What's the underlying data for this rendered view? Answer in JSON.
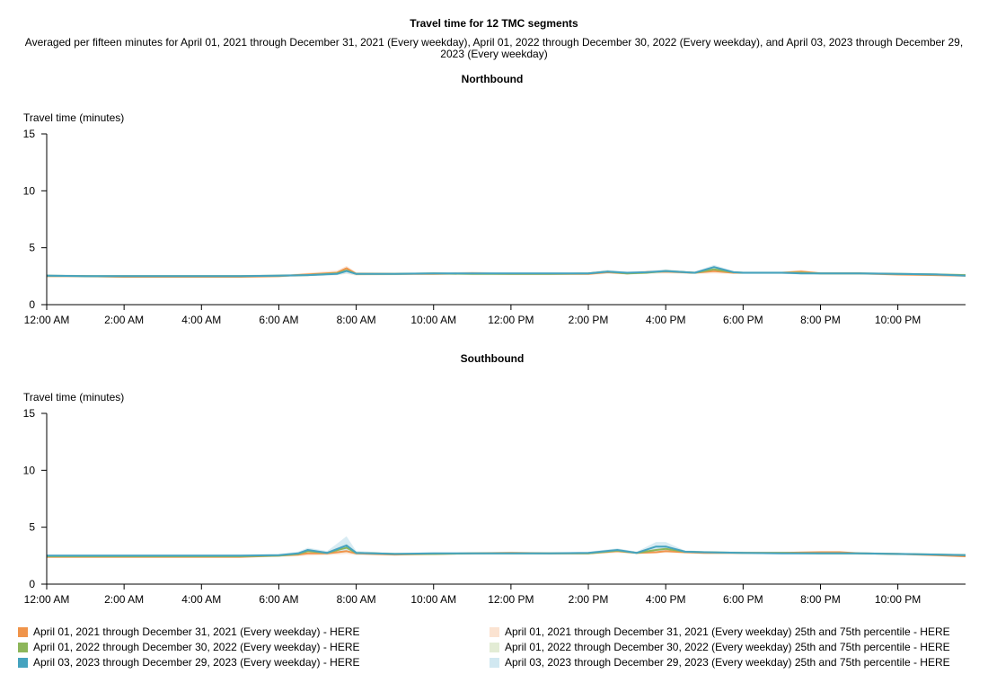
{
  "chart_data": {
    "type": "line",
    "title": "Travel time for 12 TMC segments",
    "subtitle": "Averaged per fifteen minutes for April 01, 2021 through December 31, 2021 (Every weekday), April 01, 2022 through December 30, 2022 (Every weekday), and April 03, 2023 through December 29, 2023 (Every weekday)",
    "ylabel": "Travel time (minutes)",
    "ylim": [
      0,
      15
    ],
    "yticks": [
      0,
      5,
      10,
      15
    ],
    "xlim_hours": [
      0,
      23.75
    ],
    "xticks": [
      {
        "hour": 0,
        "label": "12:00 AM"
      },
      {
        "hour": 2,
        "label": "2:00 AM"
      },
      {
        "hour": 4,
        "label": "4:00 AM"
      },
      {
        "hour": 6,
        "label": "6:00 AM"
      },
      {
        "hour": 8,
        "label": "8:00 AM"
      },
      {
        "hour": 10,
        "label": "10:00 AM"
      },
      {
        "hour": 12,
        "label": "12:00 PM"
      },
      {
        "hour": 14,
        "label": "2:00 PM"
      },
      {
        "hour": 16,
        "label": "4:00 PM"
      },
      {
        "hour": 18,
        "label": "6:00 PM"
      },
      {
        "hour": 20,
        "label": "8:00 PM"
      },
      {
        "hour": 22,
        "label": "10:00 PM"
      }
    ],
    "legend": [
      {
        "label": "April 01, 2021 through December 31, 2021 (Every weekday) - HERE",
        "color": "#f0944a"
      },
      {
        "label": "April 01, 2022 through December 30, 2022 (Every weekday) - HERE",
        "color": "#8db65a"
      },
      {
        "label": "April 03, 2023 through December 29, 2023 (Every weekday) - HERE",
        "color": "#45a3bf"
      },
      {
        "label": "April 01, 2021 through December 31, 2021 (Every weekday) 25th and 75th percentile - HERE",
        "color": "#fbe3d1"
      },
      {
        "label": "April 01, 2022 through December 30, 2022 (Every weekday) 25th and 75th percentile - HERE",
        "color": "#e3ecd5"
      },
      {
        "label": "April 03, 2023 through December 29, 2023 (Every weekday) 25th and 75th percentile - HERE",
        "color": "#d1e8f1"
      }
    ],
    "panels": [
      {
        "title": "Northbound",
        "series": [
          {
            "name": "April 01, 2021 through December 31, 2021 (Every weekday) - HERE",
            "color": "#f0944a",
            "band_color": "#fbe3d1",
            "x": [
              0,
              1,
              2,
              3,
              4,
              5,
              6,
              6.75,
              7.5,
              7.75,
              8,
              9,
              10,
              11,
              12,
              13,
              14,
              14.5,
              15,
              15.5,
              16,
              16.75,
              17.25,
              17.75,
              18,
              19,
              19.5,
              20,
              21,
              22,
              23,
              23.75
            ],
            "y": [
              2.5,
              2.5,
              2.45,
              2.45,
              2.45,
              2.45,
              2.5,
              2.65,
              2.8,
              3.2,
              2.7,
              2.7,
              2.7,
              2.75,
              2.7,
              2.7,
              2.7,
              2.85,
              2.75,
              2.85,
              2.9,
              2.8,
              2.95,
              2.8,
              2.8,
              2.8,
              2.9,
              2.75,
              2.75,
              2.65,
              2.6,
              2.55
            ],
            "low": [
              2.4,
              2.4,
              2.35,
              2.35,
              2.35,
              2.35,
              2.4,
              2.5,
              2.6,
              2.7,
              2.55,
              2.6,
              2.6,
              2.6,
              2.6,
              2.6,
              2.6,
              2.7,
              2.65,
              2.7,
              2.75,
              2.7,
              2.75,
              2.7,
              2.7,
              2.7,
              2.75,
              2.65,
              2.65,
              2.55,
              2.5,
              2.45
            ],
            "high": [
              2.6,
              2.6,
              2.55,
              2.55,
              2.55,
              2.55,
              2.6,
              2.8,
              3.0,
              3.4,
              2.85,
              2.8,
              2.8,
              2.9,
              2.8,
              2.8,
              2.8,
              3.0,
              2.85,
              3.0,
              3.05,
              2.9,
              3.15,
              2.9,
              2.9,
              2.9,
              3.05,
              2.85,
              2.85,
              2.75,
              2.7,
              2.65
            ]
          },
          {
            "name": "April 01, 2022 through December 30, 2022 (Every weekday) - HERE",
            "color": "#8db65a",
            "band_color": "#e3ecd5",
            "x": [
              0,
              1,
              2,
              3,
              4,
              5,
              6,
              6.75,
              7.5,
              7.75,
              8,
              9,
              10,
              11,
              12,
              13,
              14,
              14.5,
              15,
              15.5,
              16,
              16.75,
              17.25,
              17.75,
              18,
              19,
              19.5,
              20,
              21,
              22,
              23,
              23.75
            ],
            "y": [
              2.55,
              2.5,
              2.5,
              2.5,
              2.5,
              2.5,
              2.55,
              2.6,
              2.75,
              3.0,
              2.7,
              2.7,
              2.75,
              2.7,
              2.7,
              2.7,
              2.75,
              2.9,
              2.75,
              2.8,
              2.95,
              2.8,
              3.1,
              2.85,
              2.8,
              2.8,
              2.8,
              2.75,
              2.75,
              2.7,
              2.65,
              2.6
            ],
            "low": [
              2.45,
              2.4,
              2.4,
              2.4,
              2.4,
              2.4,
              2.45,
              2.5,
              2.6,
              2.75,
              2.6,
              2.6,
              2.65,
              2.6,
              2.6,
              2.6,
              2.65,
              2.75,
              2.65,
              2.7,
              2.8,
              2.7,
              2.9,
              2.75,
              2.7,
              2.7,
              2.7,
              2.65,
              2.65,
              2.6,
              2.55,
              2.5
            ],
            "high": [
              2.65,
              2.6,
              2.6,
              2.6,
              2.6,
              2.6,
              2.65,
              2.7,
              2.9,
              3.2,
              2.8,
              2.8,
              2.85,
              2.8,
              2.8,
              2.8,
              2.85,
              3.05,
              2.85,
              2.9,
              3.1,
              2.9,
              3.3,
              2.95,
              2.9,
              2.9,
              2.9,
              2.85,
              2.85,
              2.8,
              2.75,
              2.7
            ]
          },
          {
            "name": "April 03, 2023 through December 29, 2023 (Every weekday) - HERE",
            "color": "#45a3bf",
            "band_color": "#d1e8f1",
            "x": [
              0,
              1,
              2,
              3,
              4,
              5,
              6,
              6.75,
              7.5,
              7.75,
              8,
              9,
              10,
              11,
              12,
              13,
              14,
              14.5,
              15,
              15.5,
              16,
              16.75,
              17.25,
              17.75,
              18,
              19,
              19.5,
              20,
              21,
              22,
              23,
              23.75
            ],
            "y": [
              2.55,
              2.5,
              2.5,
              2.5,
              2.5,
              2.5,
              2.55,
              2.6,
              2.7,
              2.95,
              2.7,
              2.7,
              2.75,
              2.75,
              2.75,
              2.75,
              2.75,
              2.9,
              2.8,
              2.85,
              2.95,
              2.8,
              3.3,
              2.85,
              2.8,
              2.8,
              2.75,
              2.75,
              2.75,
              2.7,
              2.65,
              2.55
            ],
            "low": [
              2.45,
              2.4,
              2.4,
              2.4,
              2.4,
              2.4,
              2.45,
              2.5,
              2.6,
              2.75,
              2.6,
              2.6,
              2.65,
              2.65,
              2.65,
              2.65,
              2.65,
              2.75,
              2.7,
              2.75,
              2.8,
              2.7,
              3.0,
              2.75,
              2.7,
              2.7,
              2.65,
              2.65,
              2.65,
              2.6,
              2.55,
              2.45
            ],
            "high": [
              2.65,
              2.6,
              2.6,
              2.6,
              2.6,
              2.6,
              2.65,
              2.7,
              2.85,
              3.2,
              2.8,
              2.8,
              2.85,
              2.85,
              2.85,
              2.85,
              2.85,
              3.05,
              2.9,
              2.95,
              3.1,
              2.9,
              3.5,
              2.95,
              2.9,
              2.9,
              2.85,
              2.85,
              2.85,
              2.8,
              2.75,
              2.65
            ]
          }
        ]
      },
      {
        "title": "Southbound",
        "series": [
          {
            "name": "April 01, 2021 through December 31, 2021 (Every weekday) - HERE",
            "color": "#f0944a",
            "band_color": "#fbe3d1",
            "x": [
              0,
              1,
              2,
              3,
              4,
              5,
              6,
              6.5,
              6.75,
              7.25,
              7.75,
              8,
              9,
              10,
              11,
              12,
              13,
              14,
              14.75,
              15.25,
              15.75,
              16,
              16.5,
              17,
              18,
              19,
              20,
              20.5,
              21,
              22,
              23,
              23.75
            ],
            "y": [
              2.4,
              2.4,
              2.4,
              2.4,
              2.4,
              2.4,
              2.5,
              2.6,
              2.7,
              2.7,
              2.9,
              2.7,
              2.6,
              2.65,
              2.7,
              2.75,
              2.7,
              2.7,
              2.9,
              2.75,
              2.8,
              2.9,
              2.8,
              2.75,
              2.75,
              2.75,
              2.8,
              2.8,
              2.7,
              2.65,
              2.55,
              2.45
            ],
            "low": [
              2.3,
              2.3,
              2.3,
              2.3,
              2.3,
              2.3,
              2.4,
              2.45,
              2.5,
              2.55,
              2.65,
              2.55,
              2.5,
              2.55,
              2.6,
              2.65,
              2.6,
              2.6,
              2.75,
              2.65,
              2.7,
              2.75,
              2.7,
              2.65,
              2.65,
              2.65,
              2.7,
              2.7,
              2.6,
              2.55,
              2.45,
              2.35
            ],
            "high": [
              2.5,
              2.5,
              2.5,
              2.5,
              2.5,
              2.5,
              2.6,
              2.75,
              2.9,
              2.85,
              3.2,
              2.85,
              2.7,
              2.75,
              2.8,
              2.85,
              2.8,
              2.8,
              3.05,
              2.85,
              2.95,
              3.1,
              2.9,
              2.85,
              2.85,
              2.85,
              2.9,
              2.9,
              2.8,
              2.75,
              2.65,
              2.55
            ]
          },
          {
            "name": "April 01, 2022 through December 30, 2022 (Every weekday) - HERE",
            "color": "#8db65a",
            "band_color": "#e3ecd5",
            "x": [
              0,
              1,
              2,
              3,
              4,
              5,
              6,
              6.5,
              6.75,
              7.25,
              7.75,
              8,
              9,
              10,
              11,
              12,
              13,
              14,
              14.75,
              15.25,
              15.75,
              16,
              16.5,
              17,
              18,
              19,
              20,
              20.5,
              21,
              22,
              23,
              23.75
            ],
            "y": [
              2.45,
              2.45,
              2.45,
              2.45,
              2.45,
              2.45,
              2.5,
              2.65,
              2.9,
              2.75,
              3.2,
              2.75,
              2.65,
              2.65,
              2.7,
              2.7,
              2.7,
              2.7,
              2.95,
              2.75,
              3.0,
              3.1,
              2.85,
              2.8,
              2.75,
              2.75,
              2.7,
              2.7,
              2.7,
              2.65,
              2.6,
              2.55
            ],
            "low": [
              2.35,
              2.35,
              2.35,
              2.35,
              2.35,
              2.35,
              2.4,
              2.5,
              2.7,
              2.6,
              2.8,
              2.6,
              2.55,
              2.55,
              2.6,
              2.6,
              2.6,
              2.6,
              2.8,
              2.65,
              2.75,
              2.85,
              2.75,
              2.7,
              2.65,
              2.65,
              2.6,
              2.6,
              2.6,
              2.55,
              2.5,
              2.45
            ],
            "high": [
              2.55,
              2.55,
              2.55,
              2.55,
              2.55,
              2.55,
              2.6,
              2.8,
              3.1,
              2.9,
              3.7,
              2.9,
              2.75,
              2.75,
              2.8,
              2.8,
              2.8,
              2.8,
              3.1,
              2.85,
              3.3,
              3.4,
              2.95,
              2.9,
              2.85,
              2.85,
              2.8,
              2.8,
              2.8,
              2.75,
              2.7,
              2.65
            ]
          },
          {
            "name": "April 03, 2023 through December 29, 2023 (Every weekday) - HERE",
            "color": "#45a3bf",
            "band_color": "#d1e8f1",
            "x": [
              0,
              1,
              2,
              3,
              4,
              5,
              6,
              6.5,
              6.75,
              7.25,
              7.75,
              8,
              9,
              10,
              11,
              12,
              13,
              14,
              14.75,
              15.25,
              15.75,
              16,
              16.5,
              17,
              18,
              19,
              20,
              20.5,
              21,
              22,
              23,
              23.75
            ],
            "y": [
              2.5,
              2.5,
              2.5,
              2.5,
              2.5,
              2.5,
              2.55,
              2.7,
              3.0,
              2.75,
              3.4,
              2.75,
              2.65,
              2.7,
              2.7,
              2.7,
              2.7,
              2.75,
              3.0,
              2.75,
              3.3,
              3.3,
              2.85,
              2.8,
              2.75,
              2.7,
              2.7,
              2.7,
              2.7,
              2.65,
              2.6,
              2.55
            ],
            "low": [
              2.4,
              2.4,
              2.4,
              2.4,
              2.4,
              2.4,
              2.45,
              2.55,
              2.8,
              2.6,
              2.9,
              2.6,
              2.55,
              2.6,
              2.6,
              2.6,
              2.6,
              2.65,
              2.85,
              2.65,
              2.9,
              2.95,
              2.75,
              2.7,
              2.65,
              2.6,
              2.6,
              2.6,
              2.6,
              2.55,
              2.5,
              2.45
            ],
            "high": [
              2.6,
              2.6,
              2.6,
              2.6,
              2.6,
              2.6,
              2.65,
              2.85,
              3.2,
              2.9,
              4.2,
              2.9,
              2.75,
              2.8,
              2.8,
              2.8,
              2.8,
              2.85,
              3.15,
              2.85,
              3.7,
              3.7,
              2.95,
              2.9,
              2.85,
              2.8,
              2.8,
              2.8,
              2.8,
              2.75,
              2.7,
              2.65
            ]
          }
        ]
      }
    ]
  }
}
